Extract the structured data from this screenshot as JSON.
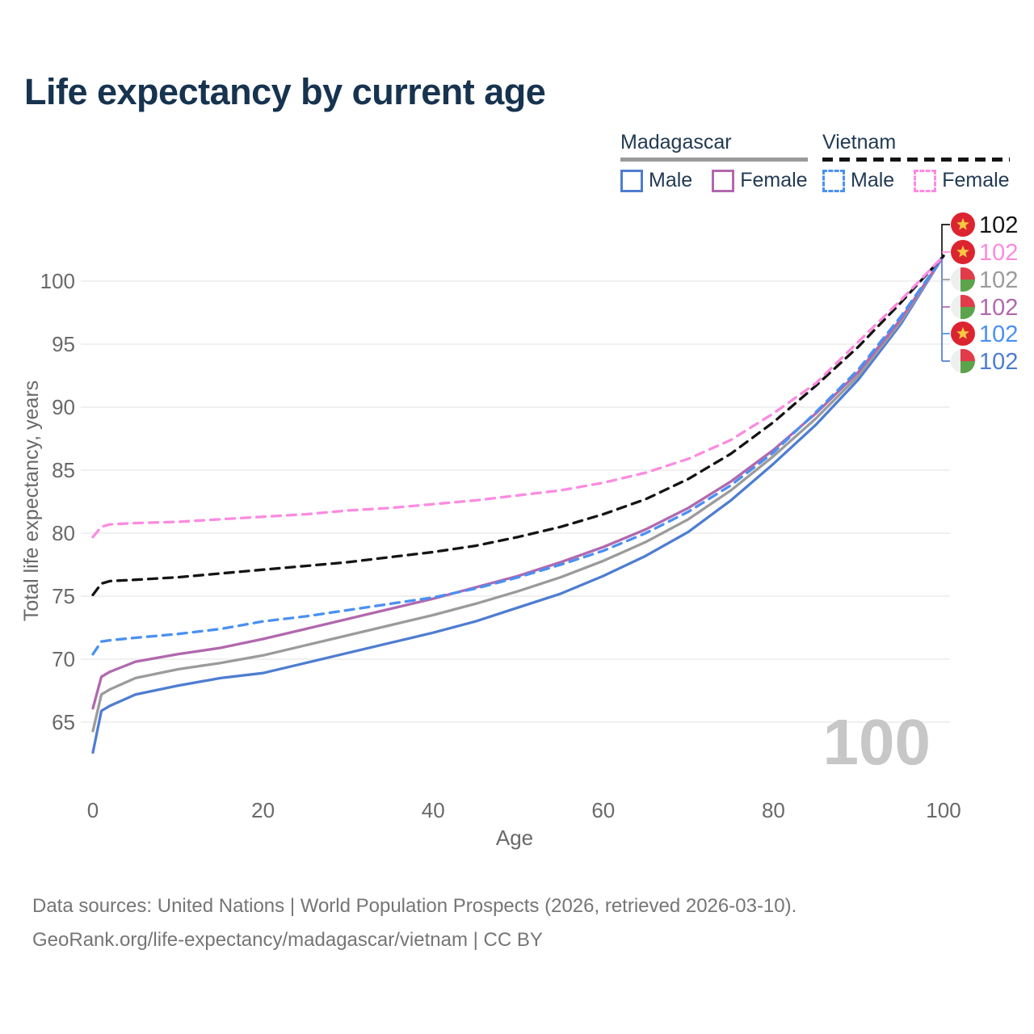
{
  "title": "Life expectancy by current age",
  "watermark": "100",
  "legend": {
    "groups": [
      {
        "country": "Madagascar",
        "underline_style": "solid",
        "underline_color": "#9a9a9a",
        "items": [
          {
            "label": "Male",
            "color": "#4e7dd1",
            "dashed": false
          },
          {
            "label": "Female",
            "color": "#b168ae",
            "dashed": false
          }
        ]
      },
      {
        "country": "Vietnam",
        "underline_style": "dashed",
        "underline_color": "#141414",
        "items": [
          {
            "label": "Male",
            "color": "#4a90f2",
            "dashed": true
          },
          {
            "label": "Female",
            "color": "#fc8be0",
            "dashed": true
          }
        ]
      }
    ]
  },
  "chart_data": {
    "type": "line",
    "title": "Life expectancy by current age",
    "xlabel": "Age",
    "ylabel": "Total life expectancy, years",
    "xlim": [
      0,
      100
    ],
    "ylim": [
      62,
      103
    ],
    "x_ticks": [
      0,
      20,
      40,
      60,
      80,
      100
    ],
    "y_ticks": [
      65,
      70,
      75,
      80,
      85,
      90,
      95,
      100
    ],
    "grid": "horizontal",
    "legend_position": "top-right",
    "x": [
      0,
      1,
      2,
      5,
      10,
      15,
      20,
      25,
      30,
      35,
      40,
      45,
      50,
      55,
      60,
      65,
      70,
      75,
      80,
      85,
      90,
      95,
      100
    ],
    "series": [
      {
        "key": "madagascar_male",
        "name": "Madagascar Male",
        "country": "Madagascar",
        "sex": "Male",
        "color": "#4e7dd1",
        "dashed": false,
        "values": [
          62.6,
          65.9,
          66.3,
          67.2,
          67.9,
          68.5,
          68.9,
          69.7,
          70.5,
          71.3,
          72.1,
          73.0,
          74.1,
          75.2,
          76.6,
          78.2,
          80.1,
          82.6,
          85.5,
          88.6,
          92.2,
          96.6,
          102.0
        ]
      },
      {
        "key": "madagascar_both",
        "name": "Madagascar Both sexes",
        "country": "Madagascar",
        "sex": "Both",
        "color": "#9b9b9b",
        "dashed": false,
        "values": [
          64.3,
          67.2,
          67.6,
          68.5,
          69.2,
          69.7,
          70.3,
          71.1,
          71.9,
          72.7,
          73.5,
          74.4,
          75.4,
          76.5,
          77.8,
          79.3,
          81.1,
          83.4,
          86.1,
          89.1,
          92.5,
          96.8,
          102.0
        ]
      },
      {
        "key": "madagascar_female",
        "name": "Madagascar Female",
        "country": "Madagascar",
        "sex": "Female",
        "color": "#b168ae",
        "dashed": false,
        "values": [
          66.1,
          68.6,
          69.0,
          69.8,
          70.4,
          70.9,
          71.6,
          72.4,
          73.2,
          74.0,
          74.8,
          75.7,
          76.6,
          77.7,
          78.9,
          80.3,
          82.0,
          84.1,
          86.6,
          89.5,
          92.8,
          97.0,
          102.0
        ]
      },
      {
        "key": "vietnam_male",
        "name": "Vietnam Male",
        "country": "Vietnam",
        "sex": "Male",
        "color": "#4a90f2",
        "dashed": true,
        "values": [
          70.4,
          71.4,
          71.5,
          71.7,
          72.0,
          72.4,
          73.0,
          73.4,
          73.9,
          74.4,
          74.9,
          75.6,
          76.5,
          77.5,
          78.6,
          80.0,
          81.7,
          83.8,
          86.4,
          89.6,
          93.0,
          97.2,
          102.0
        ]
      },
      {
        "key": "vietnam_both",
        "name": "Vietnam Both sexes",
        "country": "Vietnam",
        "sex": "Both",
        "color": "#141414",
        "dashed": true,
        "values": [
          75.1,
          76.0,
          76.2,
          76.3,
          76.5,
          76.8,
          77.1,
          77.4,
          77.7,
          78.1,
          78.5,
          79.0,
          79.7,
          80.5,
          81.5,
          82.7,
          84.3,
          86.3,
          88.8,
          91.7,
          94.8,
          98.3,
          102.0
        ]
      },
      {
        "key": "vietnam_female",
        "name": "Vietnam Female",
        "country": "Vietnam",
        "sex": "Female",
        "color": "#fc8be0",
        "dashed": true,
        "values": [
          79.7,
          80.5,
          80.7,
          80.8,
          80.9,
          81.1,
          81.3,
          81.5,
          81.8,
          82.0,
          82.3,
          82.6,
          83.0,
          83.4,
          84.0,
          84.8,
          85.9,
          87.4,
          89.5,
          91.9,
          95.2,
          98.5,
          102.0
        ]
      }
    ],
    "end_labels": [
      {
        "series": "vietnam_both",
        "flag": "vietnam",
        "value": "102"
      },
      {
        "series": "vietnam_female",
        "flag": "vietnam",
        "value": "102"
      },
      {
        "series": "madagascar_both",
        "flag": "madagascar",
        "value": "102"
      },
      {
        "series": "madagascar_female",
        "flag": "madagascar",
        "value": "102"
      },
      {
        "series": "vietnam_male",
        "flag": "vietnam",
        "value": "102"
      },
      {
        "series": "madagascar_male",
        "flag": "madagascar",
        "value": "102"
      }
    ]
  },
  "footer": {
    "line1": "Data sources: United Nations | World Population Prospects (2026, retrieved 2026-03-10).",
    "line2": "GeoRank.org/life-expectancy/madagascar/vietnam | CC BY"
  }
}
